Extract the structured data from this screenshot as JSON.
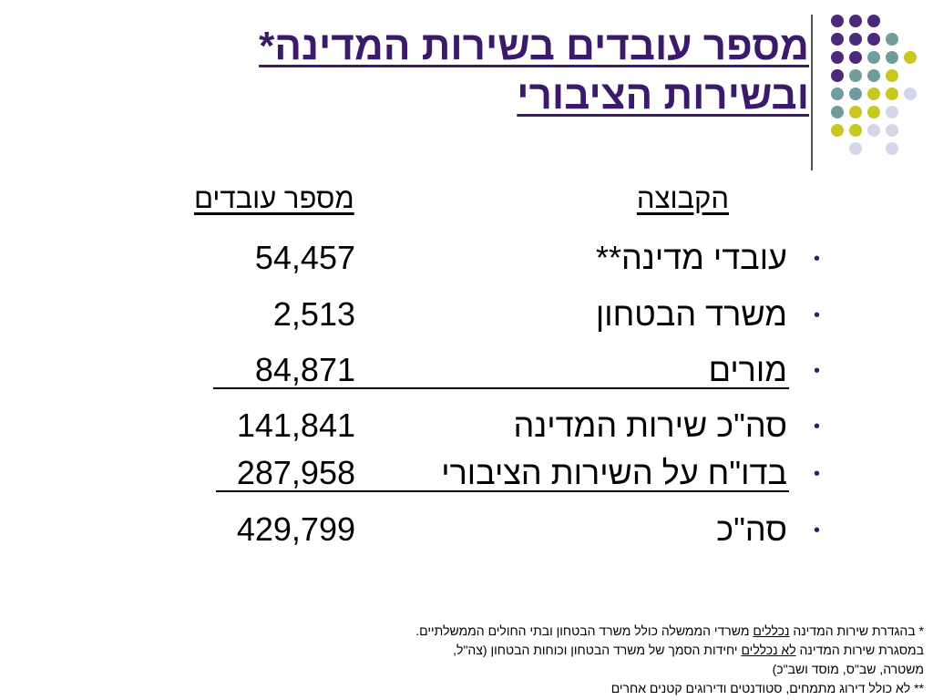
{
  "title": {
    "line1": "מספר עובדים בשירות המדינה*",
    "line2": "ובשירות הציבורי"
  },
  "columns": {
    "group": "הקבוצה",
    "count": "מספר עובדים"
  },
  "rows": [
    {
      "label": "עובדי מדינה**",
      "value": "54,457"
    },
    {
      "label": "משרד הבטחון",
      "value": "2,513"
    },
    {
      "label": "מורים",
      "value": "84,871"
    },
    {
      "label": "סה\"כ שירות המדינה",
      "value": "141,841"
    },
    {
      "label": "בדו\"ח על השירות הציבורי",
      "value": "287,958"
    },
    {
      "label": "סה\"כ",
      "value": "429,799"
    }
  ],
  "footnotes": {
    "note1_a": "* בהגדרת שירות המדינה ",
    "note1_b": "נכללים",
    "note1_c": " משרדי הממשלה כולל משרד הבטחון ובתי החולים הממשלתיים.",
    "note2_a": "במסגרת שירות המדינה ",
    "note2_b": "לא נכללים",
    "note2_c": " יחידות הסמך של משרד הבטחון וכוחות הבטחון (צה\"ל,",
    "note3": "משטרה, שב\"ס, מוסד ושב\"כ)",
    "note4": "** לא כולל דירוג מתמחים, סטודנטים ודירוגים קטנים אחרים"
  },
  "colors": {
    "title": "#3b1a6b",
    "purple": "#4b2a7b",
    "teal": "#6f9c9c",
    "yellow": "#c8c81e",
    "lavender": "#d6d6ea"
  }
}
